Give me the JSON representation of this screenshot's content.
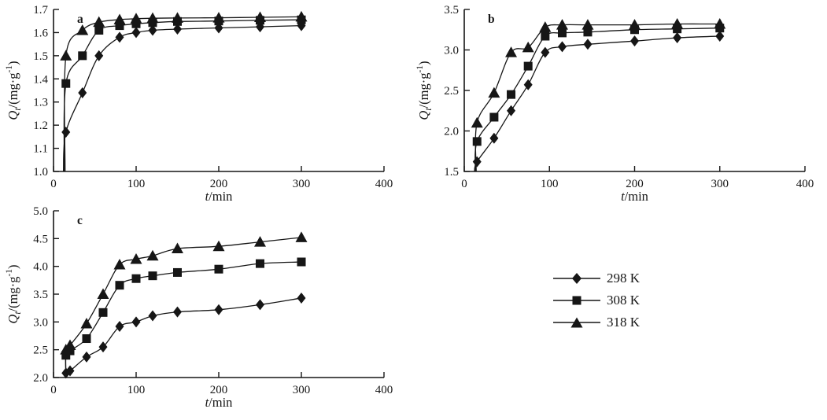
{
  "figure": {
    "background": "#ffffff",
    "ink": "#161616"
  },
  "legend": {
    "items": [
      {
        "label": "298 K",
        "marker": "diamond"
      },
      {
        "label": "308 K",
        "marker": "square"
      },
      {
        "label": "318 K",
        "marker": "triangle"
      }
    ]
  },
  "chart_data": [
    {
      "id": "a",
      "type": "line",
      "panel_label": "a",
      "xlabel_var": "t",
      "xlabel_rest": "/min",
      "ylabel_var": "Q",
      "ylabel_sub": "t",
      "ylabel_mid": "/(mg·g",
      "ylabel_sup": "-1",
      "ylabel_end": ")",
      "xlim": [
        0,
        400
      ],
      "ylim": [
        1.0,
        1.7
      ],
      "xticks": [
        0,
        100,
        200,
        300,
        400
      ],
      "xtick_labels": [
        "0",
        "100",
        "200",
        "300",
        "400"
      ],
      "yticks": [
        1.0,
        1.1,
        1.2,
        1.3,
        1.4,
        1.5,
        1.6,
        1.7
      ],
      "ytick_labels": [
        "1.0",
        "1.1",
        "1.2",
        "1.3",
        "1.4",
        "1.5",
        "1.6",
        "1.7"
      ],
      "grid": false,
      "series": [
        {
          "name": "298 K",
          "marker": "diamond",
          "line_start": [
            12,
            1.0
          ],
          "x": [
            15,
            35,
            55,
            80,
            100,
            120,
            150,
            200,
            250,
            300
          ],
          "y": [
            1.17,
            1.34,
            1.5,
            1.58,
            1.6,
            1.61,
            1.615,
            1.62,
            1.625,
            1.63
          ]
        },
        {
          "name": "308 K",
          "marker": "square",
          "line_start": [
            13,
            1.0
          ],
          "x": [
            15,
            35,
            55,
            80,
            100,
            120,
            150,
            200,
            250,
            300
          ],
          "y": [
            1.38,
            1.5,
            1.61,
            1.63,
            1.638,
            1.643,
            1.648,
            1.65,
            1.653,
            1.655
          ]
        },
        {
          "name": "318 K",
          "marker": "triangle",
          "line_start": [
            14,
            1.0
          ],
          "x": [
            15,
            35,
            55,
            80,
            100,
            120,
            150,
            200,
            250,
            300
          ],
          "y": [
            1.5,
            1.61,
            1.645,
            1.656,
            1.66,
            1.662,
            1.663,
            1.664,
            1.666,
            1.668
          ]
        }
      ]
    },
    {
      "id": "b",
      "type": "line",
      "panel_label": "b",
      "xlabel_var": "t",
      "xlabel_rest": "/min",
      "ylabel_var": "Q",
      "ylabel_sub": "t",
      "ylabel_mid": "/(mg·g",
      "ylabel_sup": "-1",
      "ylabel_end": ")",
      "xlim": [
        0,
        400
      ],
      "ylim": [
        1.5,
        3.5
      ],
      "xticks": [
        0,
        100,
        200,
        300,
        400
      ],
      "xtick_labels": [
        "0",
        "100",
        "200",
        "300",
        "400"
      ],
      "yticks": [
        1.5,
        2.0,
        2.5,
        3.0,
        3.5
      ],
      "ytick_labels": [
        "1.5",
        "2.0",
        "2.5",
        "3.0",
        "3.5"
      ],
      "grid": false,
      "series": [
        {
          "name": "298 K",
          "marker": "diamond",
          "line_start": [
            12,
            1.5
          ],
          "x": [
            15,
            35,
            55,
            75,
            95,
            115,
            145,
            200,
            250,
            300
          ],
          "y": [
            1.62,
            1.91,
            2.25,
            2.57,
            2.97,
            3.04,
            3.07,
            3.11,
            3.15,
            3.17
          ]
        },
        {
          "name": "308 K",
          "marker": "square",
          "line_start": [
            13,
            1.5
          ],
          "x": [
            15,
            35,
            55,
            75,
            95,
            115,
            145,
            200,
            250,
            300
          ],
          "y": [
            1.87,
            2.17,
            2.45,
            2.8,
            3.17,
            3.21,
            3.22,
            3.25,
            3.26,
            3.27
          ]
        },
        {
          "name": "318 K",
          "marker": "triangle",
          "line_start": [
            14,
            1.5
          ],
          "x": [
            15,
            35,
            55,
            75,
            95,
            115,
            145,
            200,
            250,
            300
          ],
          "y": [
            2.1,
            2.47,
            2.97,
            3.03,
            3.28,
            3.31,
            3.31,
            3.31,
            3.32,
            3.32
          ]
        }
      ]
    },
    {
      "id": "c",
      "type": "line",
      "panel_label": "c",
      "xlabel_var": "t",
      "xlabel_rest": "/min",
      "ylabel_var": "Q",
      "ylabel_sub": "t",
      "ylabel_mid": "/(mg·g",
      "ylabel_sup": "-1",
      "ylabel_end": ")",
      "xlim": [
        0,
        400
      ],
      "ylim": [
        2.0,
        5.0
      ],
      "xticks": [
        0,
        100,
        200,
        300,
        400
      ],
      "xtick_labels": [
        "0",
        "100",
        "200",
        "300",
        "400"
      ],
      "yticks": [
        2.0,
        2.5,
        3.0,
        3.5,
        4.0,
        4.5,
        5.0
      ],
      "ytick_labels": [
        "2.0",
        "2.5",
        "3.0",
        "3.5",
        "4.0",
        "4.5",
        "5.0"
      ],
      "grid": false,
      "series": [
        {
          "name": "298 K",
          "marker": "diamond",
          "line_start": [
            14,
            2.0
          ],
          "x": [
            15,
            20,
            40,
            60,
            80,
            100,
            120,
            150,
            200,
            250,
            300
          ],
          "y": [
            2.08,
            2.12,
            2.37,
            2.55,
            2.92,
            3.0,
            3.11,
            3.18,
            3.22,
            3.31,
            3.43
          ]
        },
        {
          "name": "308 K",
          "marker": "square",
          "line_start": [
            15,
            2.0
          ],
          "x": [
            15,
            20,
            40,
            60,
            80,
            100,
            120,
            150,
            200,
            250,
            300
          ],
          "y": [
            2.4,
            2.48,
            2.7,
            3.17,
            3.66,
            3.78,
            3.83,
            3.89,
            3.95,
            4.05,
            4.08
          ]
        },
        {
          "name": "318 K",
          "marker": "triangle",
          "line_start": [
            15,
            2.0
          ],
          "x": [
            15,
            20,
            40,
            60,
            80,
            100,
            120,
            150,
            200,
            250,
            300
          ],
          "y": [
            2.5,
            2.58,
            2.97,
            3.5,
            4.03,
            4.13,
            4.19,
            4.32,
            4.36,
            4.44,
            4.52
          ]
        }
      ]
    }
  ]
}
